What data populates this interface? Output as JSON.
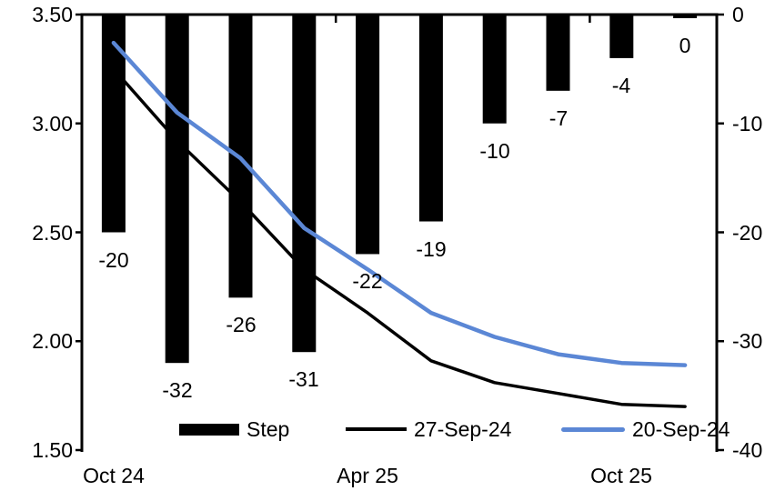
{
  "chart_data": {
    "type": "combo-bar-line",
    "n_categories": 10,
    "grid": false,
    "legend_position": "bottom",
    "x_tick_labels": [
      {
        "index": 0,
        "label": "Oct 24"
      },
      {
        "index": 4,
        "label": "Apr 25"
      },
      {
        "index": 8,
        "label": "Oct 25"
      }
    ],
    "left_axis": {
      "min": 1.5,
      "max": 3.5,
      "ticks": [
        "3.50",
        "3.00",
        "2.50",
        "2.00",
        "1.50"
      ]
    },
    "right_axis": {
      "min": -40,
      "max": 0,
      "ticks": [
        "0",
        "-10",
        "-20",
        "-30",
        "-40"
      ]
    },
    "bar_series": {
      "name": "Step",
      "axis": "right",
      "color": "#000000",
      "values": [
        -20,
        -32,
        -26,
        -31,
        -22,
        -19,
        -10,
        -7,
        -4,
        0
      ],
      "labels": [
        "-20",
        "-32",
        "-26",
        "-31",
        "-22",
        "-19",
        "-10",
        "-7",
        "-4",
        "0"
      ]
    },
    "line_series": [
      {
        "name": "27-Sep-24",
        "axis": "left",
        "color": "#000000",
        "values": [
          3.25,
          2.92,
          2.64,
          2.33,
          2.13,
          1.91,
          1.81,
          1.76,
          1.71,
          1.7
        ]
      },
      {
        "name": "20-Sep-24",
        "axis": "left",
        "color": "#5B87D5",
        "values": [
          3.37,
          3.05,
          2.84,
          2.52,
          2.33,
          2.13,
          2.02,
          1.94,
          1.9,
          1.89
        ]
      }
    ]
  }
}
